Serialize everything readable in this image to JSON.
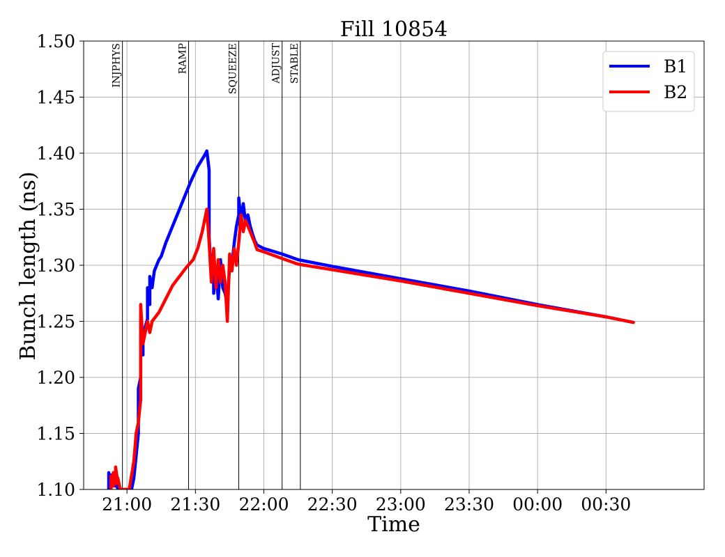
{
  "chart_data": {
    "type": "line",
    "title": "Fill 10854",
    "xlabel": "Time",
    "ylabel": "Bunch length (ns)",
    "ylim": [
      1.1,
      1.5
    ],
    "xlim": [
      "20:41",
      "01:13"
    ],
    "yticks": [
      "1.10",
      "1.15",
      "1.20",
      "1.25",
      "1.30",
      "1.35",
      "1.40",
      "1.45",
      "1.50"
    ],
    "xticks": [
      "21:00",
      "21:30",
      "22:00",
      "22:30",
      "23:00",
      "23:30",
      "00:00",
      "00:30"
    ],
    "grid": true,
    "legend": "top-right",
    "events": [
      {
        "label": "INJPHYS",
        "time": "20:58"
      },
      {
        "label": "RAMP",
        "time": "21:27"
      },
      {
        "label": "SQUEEZE",
        "time": "21:49"
      },
      {
        "label": "ADJUST",
        "time": "22:08"
      },
      {
        "label": "STABLE",
        "time": "22:16"
      }
    ],
    "series": [
      {
        "name": "B1",
        "color": "#0000ff",
        "points": [
          [
            "20:52",
            1.1
          ],
          [
            "20:52",
            1.115
          ],
          [
            "20:53",
            1.102
          ],
          [
            "20:53",
            1.113
          ],
          [
            "20:54",
            1.104
          ],
          [
            "20:54",
            1.112
          ],
          [
            "20:55",
            1.103
          ],
          [
            "20:55",
            1.11
          ],
          [
            "20:56",
            1.1
          ],
          [
            "21:02",
            1.1
          ],
          [
            "21:03",
            1.11
          ],
          [
            "21:04",
            1.13
          ],
          [
            "21:05",
            1.15
          ],
          [
            "21:05",
            1.19
          ],
          [
            "21:06",
            1.2
          ],
          [
            "21:06",
            1.255
          ],
          [
            "21:07",
            1.22
          ],
          [
            "21:07",
            1.24
          ],
          [
            "21:08",
            1.245
          ],
          [
            "21:09",
            1.252
          ],
          [
            "21:09",
            1.28
          ],
          [
            "21:10",
            1.265
          ],
          [
            "21:10",
            1.29
          ],
          [
            "21:11",
            1.28
          ],
          [
            "21:12",
            1.295
          ],
          [
            "21:13",
            1.3
          ],
          [
            "21:14",
            1.305
          ],
          [
            "21:15",
            1.308
          ],
          [
            "21:17",
            1.32
          ],
          [
            "21:20",
            1.335
          ],
          [
            "21:22",
            1.345
          ],
          [
            "21:25",
            1.36
          ],
          [
            "21:28",
            1.375
          ],
          [
            "21:31",
            1.388
          ],
          [
            "21:34",
            1.398
          ],
          [
            "21:35",
            1.402
          ],
          [
            "21:36",
            1.385
          ],
          [
            "21:36",
            1.325
          ],
          [
            "21:37",
            1.29
          ],
          [
            "21:38",
            1.3
          ],
          [
            "21:38",
            1.275
          ],
          [
            "21:39",
            1.295
          ],
          [
            "21:40",
            1.27
          ],
          [
            "21:41",
            1.305
          ],
          [
            "21:42",
            1.28
          ],
          [
            "21:43",
            1.275
          ],
          [
            "21:44",
            1.265
          ],
          [
            "21:45",
            1.3
          ],
          [
            "21:46",
            1.3
          ],
          [
            "21:47",
            1.32
          ],
          [
            "21:48",
            1.335
          ],
          [
            "21:49",
            1.345
          ],
          [
            "21:49",
            1.36
          ],
          [
            "21:50",
            1.34
          ],
          [
            "21:51",
            1.355
          ],
          [
            "21:52",
            1.338
          ],
          [
            "21:53",
            1.345
          ],
          [
            "21:54",
            1.335
          ],
          [
            "21:55",
            1.328
          ],
          [
            "21:56",
            1.322
          ],
          [
            "21:57",
            1.318
          ],
          [
            "22:00",
            1.315
          ],
          [
            "22:08",
            1.31
          ],
          [
            "22:15",
            1.305
          ],
          [
            "22:30",
            1.299
          ],
          [
            "23:00",
            1.288
          ],
          [
            "23:30",
            1.277
          ],
          [
            "00:00",
            1.265
          ],
          [
            "00:30",
            1.254
          ],
          [
            "00:42",
            1.249
          ]
        ]
      },
      {
        "name": "B2",
        "color": "#ff0000",
        "points": [
          [
            "20:53",
            1.1
          ],
          [
            "20:53",
            1.112
          ],
          [
            "20:54",
            1.103
          ],
          [
            "20:54",
            1.115
          ],
          [
            "20:55",
            1.105
          ],
          [
            "20:55",
            1.12
          ],
          [
            "20:56",
            1.106
          ],
          [
            "20:56",
            1.11
          ],
          [
            "20:57",
            1.1
          ],
          [
            "21:01",
            1.1
          ],
          [
            "21:03",
            1.125
          ],
          [
            "21:04",
            1.15
          ],
          [
            "21:05",
            1.16
          ],
          [
            "21:06",
            1.18
          ],
          [
            "21:06",
            1.265
          ],
          [
            "21:07",
            1.23
          ],
          [
            "21:08",
            1.24
          ],
          [
            "21:09",
            1.25
          ],
          [
            "21:10",
            1.24
          ],
          [
            "21:11",
            1.25
          ],
          [
            "21:14",
            1.258
          ],
          [
            "21:17",
            1.27
          ],
          [
            "21:20",
            1.282
          ],
          [
            "21:23",
            1.29
          ],
          [
            "21:26",
            1.298
          ],
          [
            "21:29",
            1.305
          ],
          [
            "21:31",
            1.315
          ],
          [
            "21:33",
            1.33
          ],
          [
            "21:35",
            1.35
          ],
          [
            "21:36",
            1.32
          ],
          [
            "21:37",
            1.285
          ],
          [
            "21:38",
            1.315
          ],
          [
            "21:39",
            1.28
          ],
          [
            "21:40",
            1.305
          ],
          [
            "21:41",
            1.285
          ],
          [
            "21:42",
            1.3
          ],
          [
            "21:43",
            1.285
          ],
          [
            "21:44",
            1.25
          ],
          [
            "21:45",
            1.31
          ],
          [
            "21:46",
            1.295
          ],
          [
            "21:47",
            1.315
          ],
          [
            "21:48",
            1.3
          ],
          [
            "21:49",
            1.32
          ],
          [
            "21:50",
            1.345
          ],
          [
            "21:51",
            1.33
          ],
          [
            "21:52",
            1.34
          ],
          [
            "21:53",
            1.335
          ],
          [
            "21:54",
            1.33
          ],
          [
            "21:55",
            1.325
          ],
          [
            "21:56",
            1.32
          ],
          [
            "21:57",
            1.314
          ],
          [
            "22:00",
            1.312
          ],
          [
            "22:08",
            1.306
          ],
          [
            "22:15",
            1.301
          ],
          [
            "22:30",
            1.296
          ],
          [
            "23:00",
            1.286
          ],
          [
            "23:30",
            1.275
          ],
          [
            "00:00",
            1.264
          ],
          [
            "00:30",
            1.254
          ],
          [
            "00:42",
            1.249
          ]
        ]
      }
    ]
  }
}
